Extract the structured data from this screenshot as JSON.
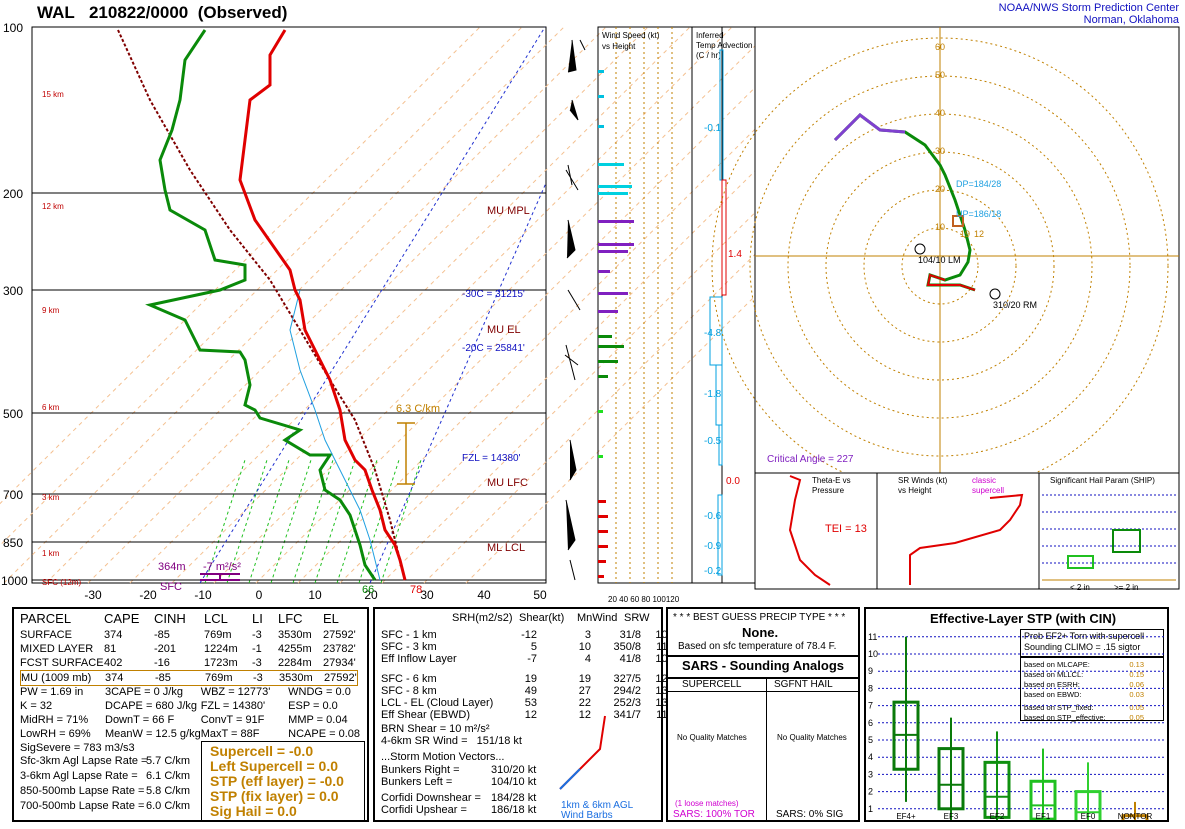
{
  "header": {
    "station": "WAL",
    "datetime": "210822/0000",
    "kind": "(Observed)",
    "org_line1": "NOAA/NWS Storm Prediction Center",
    "org_line2": "Norman, Oklahoma"
  },
  "skewt": {
    "p_labels": [
      "100",
      "200",
      "300",
      "500",
      "700",
      "850",
      "1000"
    ],
    "t_labels": [
      "-30",
      "-20",
      "-10",
      "0",
      "10",
      "20",
      "30",
      "40",
      "50"
    ],
    "h_labels": [
      "15 km",
      "12 km",
      "9 km",
      "6 km",
      "3 km",
      "1 km",
      "SFC (12m)"
    ],
    "mu_mpl": "MU MPL",
    "m30c": "-30C = 31215'",
    "mu_el": "MU EL",
    "m20c": "-20C = 25841'",
    "lapse": "6.3 C/km",
    "fzl": "FZL = 14380'",
    "mu_lfc": "MU LFC",
    "ml_lcl": "ML LCL",
    "eff_top": "364m",
    "eff_srh": "-7 m²/s²",
    "sfc": "SFC",
    "sfc_td": "66",
    "sfc_t": "78"
  },
  "wind_panel": {
    "title1": "Wind Speed (kt)",
    "title2": "vs Height",
    "axis": "20 40 60 80 100120"
  },
  "adv_panel": {
    "title1": "Inferred",
    "title2": "Temp Advection",
    "title3": "(C / hr)",
    "values": [
      "-0.1",
      "1.4",
      "-4.8",
      "-1.8",
      "-0.5",
      "0.0",
      "-0.6",
      "-0.9",
      "-0.2"
    ]
  },
  "hodo": {
    "rings": [
      "10",
      "20",
      "30",
      "40",
      "50",
      "60",
      "70"
    ],
    "dp": "DP=184/28",
    "up": "UP=186/18",
    "val19": "19",
    "val12": "12",
    "lm": "104/10 LM",
    "rm": "310/20 RM",
    "crit": "Critical Angle = 227"
  },
  "theta_panel": {
    "title1": "Theta-E vs",
    "title2": "Pressure",
    "tei": "TEI = 13",
    "y_ticks": [
      "650",
      "700",
      "750",
      "800",
      "850",
      "900",
      "950"
    ],
    "x_ticks": [
      "319",
      "329",
      "339",
      "349",
      "359"
    ]
  },
  "srw_panel": {
    "title1": "SR Winds (kt)",
    "title2": "vs Height",
    "classic": "classic",
    "supercell": "supercell",
    "y_ticks": [
      "16",
      "14",
      "12",
      "10",
      "8",
      "6",
      "4",
      "2",
      "0"
    ]
  },
  "ship_panel": {
    "title": "Significant Hail Param (SHIP)",
    "y_ticks": [
      "5",
      "4",
      "3",
      "2",
      "1"
    ],
    "cat1": "< 2 in",
    "cat2": ">= 2 in"
  },
  "parcel": {
    "headers": [
      "PARCEL",
      "CAPE",
      "CINH",
      "LCL",
      "LI",
      "LFC",
      "EL"
    ],
    "rows": [
      [
        "SURFACE",
        "374",
        "-85",
        "769m",
        "-3",
        "3530m",
        "27592'"
      ],
      [
        "MIXED LAYER",
        "81",
        "-201",
        "1224m",
        "-1",
        "4255m",
        "23782'"
      ],
      [
        "FCST SURFACE",
        "402",
        "-16",
        "1723m",
        "-3",
        "2284m",
        "27934'"
      ],
      [
        "MU  (1009 mb)",
        "374",
        "-85",
        "769m",
        "-3",
        "3530m",
        "27592'"
      ]
    ]
  },
  "indices": {
    "col1": [
      "PW = 1.69 in",
      "K = 32",
      "MidRH = 71%",
      "LowRH = 69%",
      "SigSevere = 783 m3/s3"
    ],
    "col2": [
      "3CAPE = 0 J/kg",
      "DCAPE = 680 J/kg",
      "DownT = 66 F",
      "MeanW = 12.5 g/kg"
    ],
    "col3": [
      "WBZ = 12773'",
      "FZL = 14380'",
      "ConvT = 91F",
      "MaxT = 88F"
    ],
    "col4": [
      "WNDG = 0.0",
      "ESP = 0.0",
      "MMP = 0.04",
      "NCAPE = 0.08"
    ]
  },
  "lapse_rates": [
    [
      "Sfc-3km Agl Lapse Rate =",
      "5.7 C/km"
    ],
    [
      "3-6km Agl Lapse Rate =",
      "6.1 C/km"
    ],
    [
      "850-500mb Lapse Rate =",
      "5.8 C/km"
    ],
    [
      "700-500mb Lapse Rate =",
      "6.0 C/km"
    ]
  ],
  "composite": [
    "Supercell = -0.0",
    "Left Supercell = 0.0",
    "STP (eff layer) = -0.0",
    "STP (fix layer) = 0.0",
    "Sig Hail = 0.0"
  ],
  "kinematic": {
    "headers": [
      "SRH(m2/s2)",
      "Shear(kt)",
      "MnWind",
      "SRW"
    ],
    "rows": [
      [
        "SFC - 1 km",
        "-12",
        "3",
        "31/8",
        "106/20"
      ],
      [
        "SFC - 3 km",
        "5",
        "10",
        "350/8",
        "110/15"
      ],
      [
        "Eff Inflow Layer",
        "-7",
        "4",
        "41/8",
        "108/22"
      ],
      [
        "SFC - 6 km",
        "19",
        "19",
        "327/5",
        "123/15"
      ],
      [
        "SFC - 8 km",
        "49",
        "27",
        "294/2",
        "132/18"
      ],
      [
        "LCL - EL (Cloud Layer)",
        "53",
        "22",
        "252/3",
        "138/17"
      ],
      [
        "Eff Shear (EBWD)",
        "12",
        "12",
        "341/7",
        "115/14"
      ]
    ],
    "brn": "BRN Shear = 10 m²/s²",
    "srwind": "4-6km SR Wind =",
    "srwind_val": "151/18 kt",
    "motion_title": "...Storm Motion Vectors...",
    "motion": [
      [
        "Bunkers Right =",
        "310/20 kt"
      ],
      [
        "Bunkers Left =",
        "104/10 kt"
      ],
      [
        "Corfidi Downshear =",
        "184/28 kt"
      ],
      [
        "Corfidi Upshear =",
        "186/18 kt"
      ]
    ],
    "barb_legend1": "1km & 6km AGL",
    "barb_legend2": "Wind Barbs"
  },
  "precip": {
    "title": "* * * BEST GUESS PRECIP TYPE * * *",
    "value": "None.",
    "note": "Based on sfc temperature of 78.4 F."
  },
  "sars": {
    "title": "SARS - Sounding Analogs",
    "col1": "SUPERCELL",
    "col2": "SGFNT HAIL",
    "nomatch1": "No Quality Matches",
    "nomatch2": "No Quality Matches",
    "loose": "(1 loose matches)",
    "tor": "SARS: 100% TOR",
    "sig": "SARS: 0% SIG"
  },
  "stp": {
    "title": "Effective-Layer STP (with CIN)",
    "prob1": "Prob EF2+ Torn with supercell",
    "prob2": "Sounding CLIMO = .15 sigtor",
    "items": [
      [
        "based on MLCAPE:",
        "0.13"
      ],
      [
        "based on MLLCL:",
        "0.15"
      ],
      [
        "based on ESRH:",
        "0.06"
      ],
      [
        "based on EBWD:",
        "0.03"
      ],
      [
        "based on STP_fixed:",
        "0.05"
      ],
      [
        "based on STP_effective:",
        "0.05"
      ]
    ],
    "y_ticks": [
      "11",
      "10",
      "9",
      "8",
      "7",
      "6",
      "5",
      "4",
      "3",
      "2",
      "1",
      "0"
    ],
    "cats": [
      "EF4+",
      "EF3",
      "EF2",
      "EF1",
      "EF0",
      "NONTOR"
    ]
  }
}
